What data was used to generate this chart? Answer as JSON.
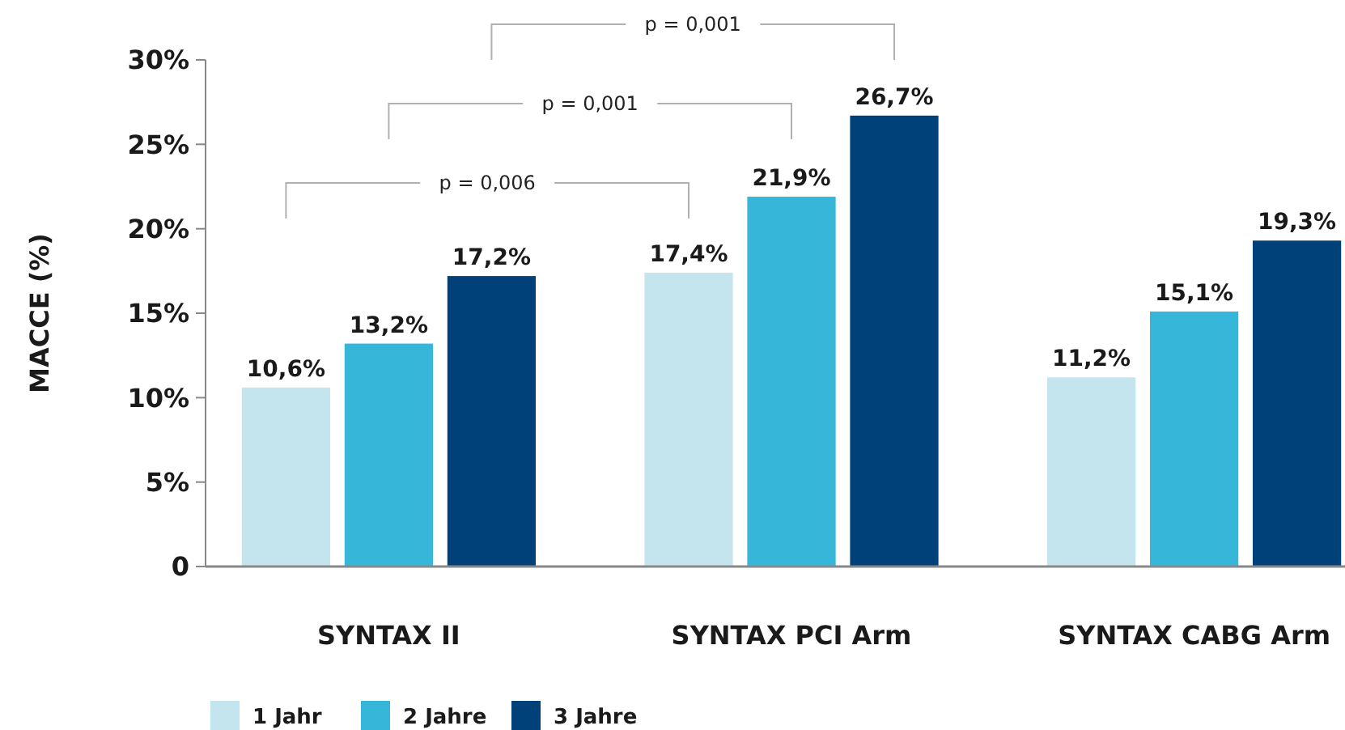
{
  "chart_data": {
    "type": "bar",
    "ylabel": "MACCE (%)",
    "categories": [
      "SYNTAX II",
      "SYNTAX PCI Arm",
      "SYNTAX CABG Arm"
    ],
    "series": [
      {
        "name": "1 Jahr",
        "color": "#c5e5ee",
        "values": [
          10.6,
          17.4,
          11.2
        ],
        "value_labels": [
          "10,6%",
          "17,4%",
          "11,2%"
        ]
      },
      {
        "name": "2 Jahre",
        "color": "#36b6d8",
        "values": [
          13.2,
          21.9,
          15.1
        ],
        "value_labels": [
          "13,2%",
          "21,9%",
          "15,1%"
        ]
      },
      {
        "name": "3 Jahre",
        "color": "#00417a",
        "values": [
          17.2,
          26.7,
          19.3
        ],
        "value_labels": [
          "17,2%",
          "26,7%",
          "19,3%"
        ]
      }
    ],
    "ylim": [
      0,
      30
    ],
    "yticks": [
      0,
      {
        "value": 5,
        "label": "5%"
      },
      {
        "value": 10,
        "label": "10%"
      },
      {
        "value": 15,
        "label": "15%"
      },
      {
        "value": 20,
        "label": "20%"
      },
      {
        "value": 25,
        "label": "25%"
      },
      {
        "value": 30,
        "label": "30%"
      }
    ],
    "grid": false,
    "legend": "bottom left",
    "annotations": [
      "p = 0,006",
      "p = 0,001",
      "p = 0,001"
    ]
  }
}
